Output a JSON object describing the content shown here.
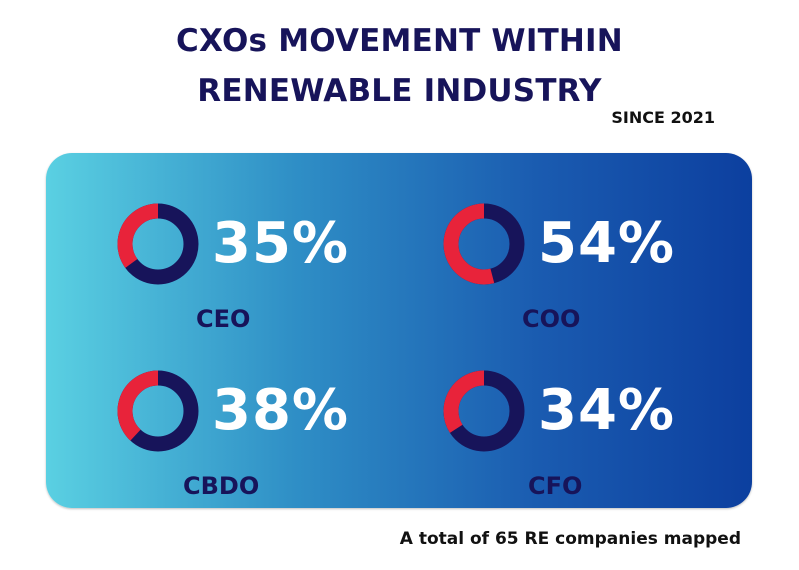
{
  "title_line1": "CXOs MOVEMENT WITHIN",
  "title_line2": "RENEWABLE INDUSTRY",
  "subtitle": "SINCE 2021",
  "footnote": "A total of 65 RE companies mapped",
  "colors": {
    "title": "#17145a",
    "donut_highlight": "#e8233a",
    "donut_remainder": "#17145a",
    "percent_text": "#ffffff"
  },
  "chart_data": {
    "type": "pie",
    "items": [
      {
        "role": "CEO",
        "label": "35%",
        "value": 35
      },
      {
        "role": "COO",
        "label": "54%",
        "value": 54
      },
      {
        "role": "CBDO",
        "label": "38%",
        "value": 38
      },
      {
        "role": "CFO",
        "label": "34%",
        "value": 34
      }
    ]
  }
}
